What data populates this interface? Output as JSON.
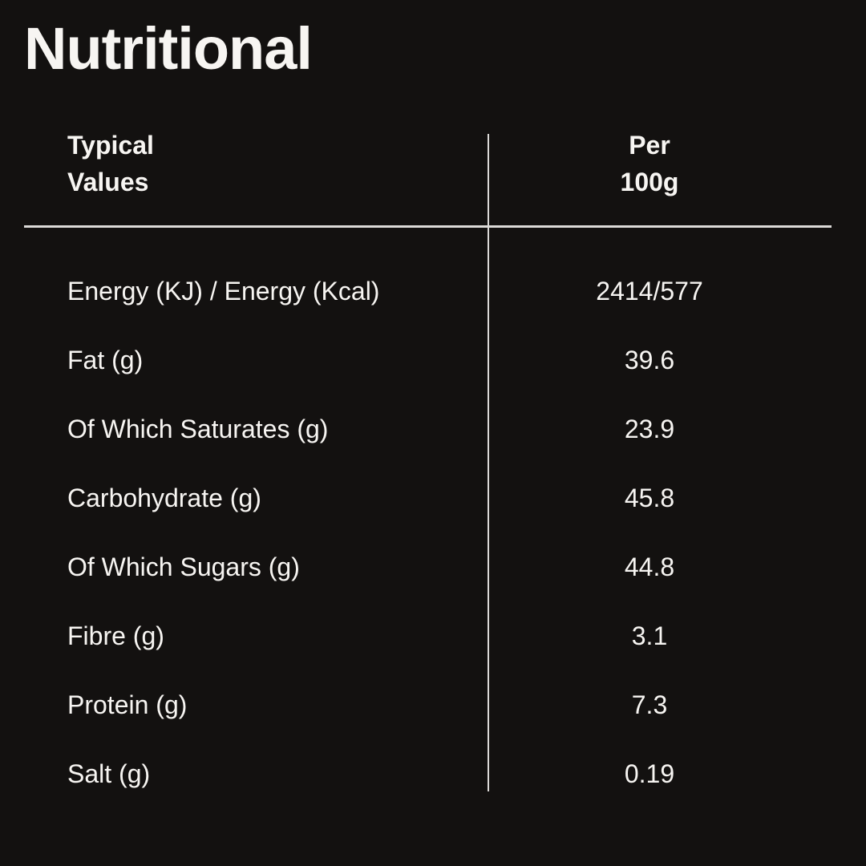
{
  "colors": {
    "bg": "#131110",
    "text": "#f7f5f2",
    "rule": "#dcdad8"
  },
  "title": "Nutritional",
  "table": {
    "header": {
      "col1": "Typical\nValues",
      "col2": "Per\n100g"
    },
    "rows": [
      {
        "label": "Energy (KJ) / Energy (Kcal)",
        "value": "2414/577"
      },
      {
        "label": "Fat (g)",
        "value": "39.6"
      },
      {
        "label": "Of Which Saturates (g)",
        "value": "23.9"
      },
      {
        "label": "Carbohydrate (g)",
        "value": "45.8"
      },
      {
        "label": "Of Which Sugars (g)",
        "value": "44.8"
      },
      {
        "label": "Fibre (g)",
        "value": "3.1"
      },
      {
        "label": "Protein (g)",
        "value": "7.3"
      },
      {
        "label": "Salt (g)",
        "value": "0.19"
      }
    ]
  }
}
